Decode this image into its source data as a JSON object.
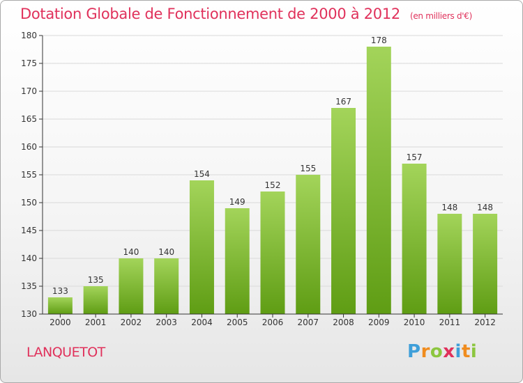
{
  "header": {
    "title": "Dotation Globale de Fonctionnement de 2000 à 2012",
    "unit": "(en milliers d'€)"
  },
  "commune": "LANQUETOT",
  "brand": {
    "letters": [
      "P",
      "r",
      "o",
      "x",
      "i",
      "t",
      "i"
    ],
    "colors": [
      "#3f9fd9",
      "#f08c1e",
      "#8cc63f",
      "#e0315b",
      "#3f9fd9",
      "#f08c1e",
      "#8cc63f"
    ]
  },
  "colors": {
    "bar_light": "#a3d45a",
    "bar_dark": "#5f9d14",
    "axis": "#333333",
    "grid": "#d9d9d9",
    "title": "#e0315b"
  },
  "chart_data": {
    "type": "bar",
    "categories": [
      "2000",
      "2001",
      "2002",
      "2003",
      "2004",
      "2005",
      "2006",
      "2007",
      "2008",
      "2009",
      "2010",
      "2011",
      "2012"
    ],
    "values": [
      133,
      135,
      140,
      140,
      154,
      149,
      152,
      155,
      167,
      178,
      157,
      148,
      148
    ],
    "ylim": [
      130,
      180
    ],
    "yticks": [
      130,
      135,
      140,
      145,
      150,
      155,
      160,
      165,
      170,
      175,
      180
    ],
    "grid": true,
    "title": "Dotation Globale de Fonctionnement de 2000 à 2012",
    "xlabel": "",
    "ylabel": ""
  }
}
